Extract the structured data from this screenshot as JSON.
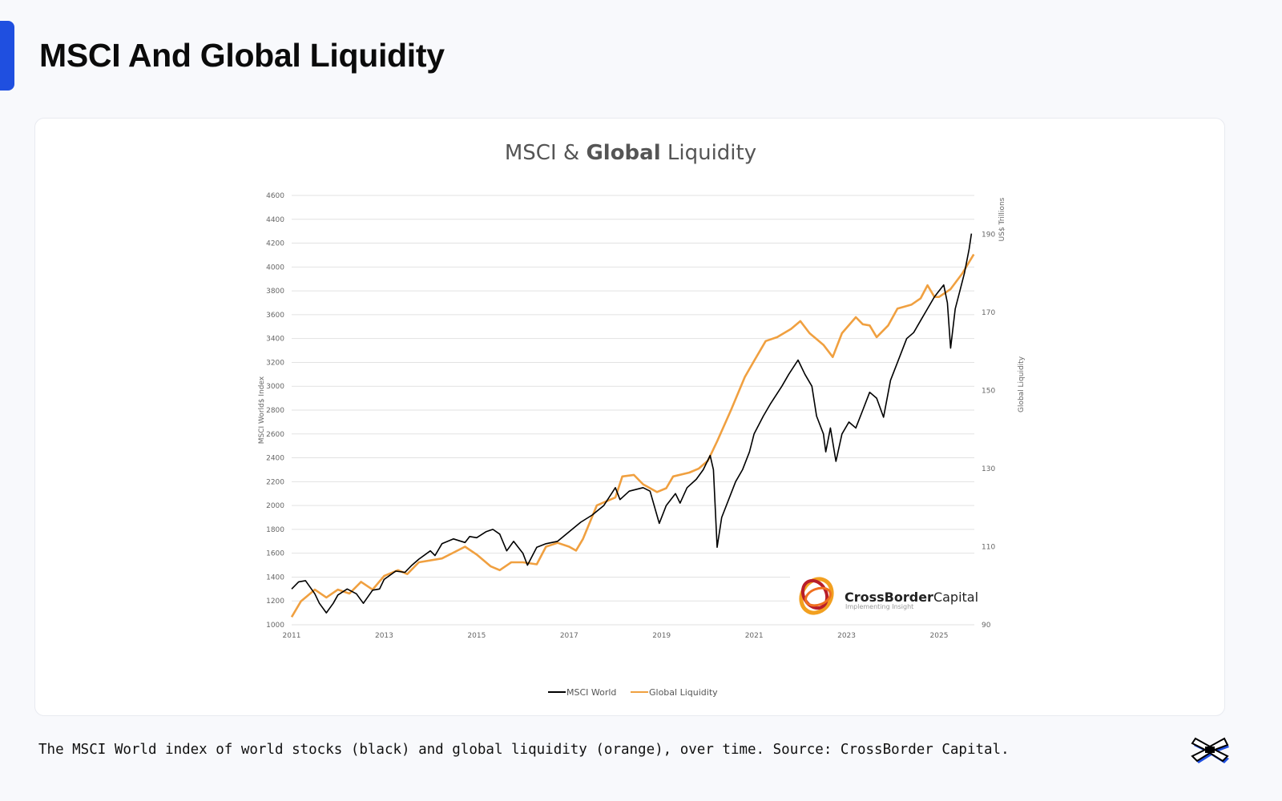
{
  "page": {
    "title": "MSCI And Global Liquidity",
    "caption": "The MSCI World index of world stocks (black) and global liquidity (orange), over time. Source: CrossBorder Capital.",
    "accent_color": "#1f4fe0"
  },
  "logo": {
    "name_bold": "CrossBorder",
    "name_light": "Capital",
    "tagline": "Implementing Insight"
  },
  "chart_data": {
    "type": "line",
    "title_parts": [
      "MSCI & ",
      "Global",
      " Liquidity"
    ],
    "ylabel": "MSCI World$ Index",
    "y2label_unit": "US$ Trillions",
    "y2label": "Global Liquidity",
    "xlim": [
      2011,
      2025.8
    ],
    "ylim": [
      1000,
      4600
    ],
    "y2lim": [
      90,
      200
    ],
    "x_ticks": [
      "2011",
      "2013",
      "2015",
      "2017",
      "2019",
      "2021",
      "2023",
      "2025"
    ],
    "y_ticks": [
      1000,
      1200,
      1400,
      1600,
      1800,
      2000,
      2200,
      2400,
      2600,
      2800,
      3000,
      3200,
      3400,
      3600,
      3800,
      4000,
      4200,
      4400,
      4600
    ],
    "y2_ticks": [
      90,
      110,
      130,
      150,
      170,
      190
    ],
    "grid": true,
    "legend_position": "bottom",
    "series": [
      {
        "name": "MSCI World",
        "axis": "left",
        "color": "#000000",
        "points": [
          [
            2011.0,
            1300
          ],
          [
            2011.15,
            1360
          ],
          [
            2011.3,
            1370
          ],
          [
            2011.5,
            1260
          ],
          [
            2011.6,
            1180
          ],
          [
            2011.75,
            1100
          ],
          [
            2011.9,
            1180
          ],
          [
            2012.0,
            1250
          ],
          [
            2012.2,
            1300
          ],
          [
            2012.4,
            1260
          ],
          [
            2012.55,
            1180
          ],
          [
            2012.75,
            1290
          ],
          [
            2012.9,
            1300
          ],
          [
            2013.0,
            1380
          ],
          [
            2013.25,
            1450
          ],
          [
            2013.45,
            1440
          ],
          [
            2013.6,
            1500
          ],
          [
            2013.75,
            1550
          ],
          [
            2014.0,
            1620
          ],
          [
            2014.1,
            1580
          ],
          [
            2014.25,
            1680
          ],
          [
            2014.5,
            1720
          ],
          [
            2014.75,
            1690
          ],
          [
            2014.85,
            1740
          ],
          [
            2015.0,
            1730
          ],
          [
            2015.2,
            1780
          ],
          [
            2015.35,
            1800
          ],
          [
            2015.5,
            1760
          ],
          [
            2015.65,
            1620
          ],
          [
            2015.8,
            1700
          ],
          [
            2016.0,
            1600
          ],
          [
            2016.1,
            1500
          ],
          [
            2016.3,
            1650
          ],
          [
            2016.5,
            1680
          ],
          [
            2016.75,
            1700
          ],
          [
            2017.0,
            1780
          ],
          [
            2017.25,
            1860
          ],
          [
            2017.5,
            1920
          ],
          [
            2017.75,
            2000
          ],
          [
            2018.0,
            2150
          ],
          [
            2018.1,
            2050
          ],
          [
            2018.3,
            2120
          ],
          [
            2018.6,
            2150
          ],
          [
            2018.75,
            2120
          ],
          [
            2018.95,
            1850
          ],
          [
            2019.1,
            2000
          ],
          [
            2019.3,
            2100
          ],
          [
            2019.4,
            2020
          ],
          [
            2019.55,
            2150
          ],
          [
            2019.75,
            2220
          ],
          [
            2019.9,
            2300
          ],
          [
            2020.05,
            2420
          ],
          [
            2020.12,
            2300
          ],
          [
            2020.2,
            1650
          ],
          [
            2020.3,
            1900
          ],
          [
            2020.45,
            2050
          ],
          [
            2020.6,
            2200
          ],
          [
            2020.75,
            2300
          ],
          [
            2020.9,
            2450
          ],
          [
            2021.0,
            2600
          ],
          [
            2021.2,
            2750
          ],
          [
            2021.35,
            2850
          ],
          [
            2021.6,
            3000
          ],
          [
            2021.75,
            3100
          ],
          [
            2021.95,
            3220
          ],
          [
            2022.1,
            3100
          ],
          [
            2022.25,
            3000
          ],
          [
            2022.35,
            2750
          ],
          [
            2022.5,
            2600
          ],
          [
            2022.55,
            2450
          ],
          [
            2022.65,
            2650
          ],
          [
            2022.77,
            2370
          ],
          [
            2022.9,
            2600
          ],
          [
            2023.05,
            2700
          ],
          [
            2023.2,
            2650
          ],
          [
            2023.35,
            2800
          ],
          [
            2023.5,
            2950
          ],
          [
            2023.65,
            2900
          ],
          [
            2023.8,
            2740
          ],
          [
            2023.95,
            3050
          ],
          [
            2024.1,
            3200
          ],
          [
            2024.3,
            3400
          ],
          [
            2024.45,
            3450
          ],
          [
            2024.6,
            3550
          ],
          [
            2024.75,
            3650
          ],
          [
            2024.9,
            3750
          ],
          [
            2025.0,
            3800
          ],
          [
            2025.1,
            3850
          ],
          [
            2025.18,
            3700
          ],
          [
            2025.25,
            3320
          ],
          [
            2025.35,
            3650
          ],
          [
            2025.45,
            3800
          ],
          [
            2025.55,
            3950
          ],
          [
            2025.65,
            4150
          ],
          [
            2025.7,
            4280
          ]
        ]
      },
      {
        "name": "Global Liquidity",
        "axis": "right",
        "color": "#f0a040",
        "points": [
          [
            2011.0,
            92
          ],
          [
            2011.2,
            96
          ],
          [
            2011.5,
            99
          ],
          [
            2011.75,
            97
          ],
          [
            2012.0,
            99
          ],
          [
            2012.25,
            98
          ],
          [
            2012.5,
            101
          ],
          [
            2012.75,
            99
          ],
          [
            2013.0,
            102.5
          ],
          [
            2013.3,
            104
          ],
          [
            2013.5,
            103
          ],
          [
            2013.75,
            106
          ],
          [
            2014.25,
            107
          ],
          [
            2014.5,
            108.5
          ],
          [
            2014.75,
            110
          ],
          [
            2015.0,
            108
          ],
          [
            2015.3,
            105
          ],
          [
            2015.5,
            104
          ],
          [
            2015.75,
            106
          ],
          [
            2016.0,
            106
          ],
          [
            2016.3,
            105.5
          ],
          [
            2016.5,
            110
          ],
          [
            2016.75,
            111
          ],
          [
            2017.0,
            110
          ],
          [
            2017.15,
            109
          ],
          [
            2017.3,
            112
          ],
          [
            2017.6,
            120.6
          ],
          [
            2018.0,
            122.6
          ],
          [
            2018.15,
            128
          ],
          [
            2018.4,
            128.4
          ],
          [
            2018.6,
            126
          ],
          [
            2018.9,
            124
          ],
          [
            2019.1,
            125
          ],
          [
            2019.25,
            128
          ],
          [
            2019.6,
            129
          ],
          [
            2019.8,
            130
          ],
          [
            2020.0,
            132
          ],
          [
            2020.2,
            137
          ],
          [
            2020.5,
            145
          ],
          [
            2020.8,
            153.5
          ],
          [
            2021.0,
            157.6
          ],
          [
            2021.25,
            162.7
          ],
          [
            2021.5,
            163.7
          ],
          [
            2021.8,
            165.8
          ],
          [
            2022.0,
            167.8
          ],
          [
            2022.2,
            164.7
          ],
          [
            2022.5,
            161.7
          ],
          [
            2022.7,
            158.6
          ],
          [
            2022.9,
            164.7
          ],
          [
            2023.2,
            168.8
          ],
          [
            2023.35,
            167
          ],
          [
            2023.5,
            166.7
          ],
          [
            2023.65,
            163.7
          ],
          [
            2023.9,
            166.7
          ],
          [
            2024.1,
            171
          ],
          [
            2024.4,
            172
          ],
          [
            2024.6,
            173.6
          ],
          [
            2024.75,
            177
          ],
          [
            2024.9,
            174
          ],
          [
            2025.0,
            174
          ],
          [
            2025.25,
            176
          ],
          [
            2025.5,
            180
          ],
          [
            2025.75,
            184.9
          ]
        ]
      }
    ]
  }
}
